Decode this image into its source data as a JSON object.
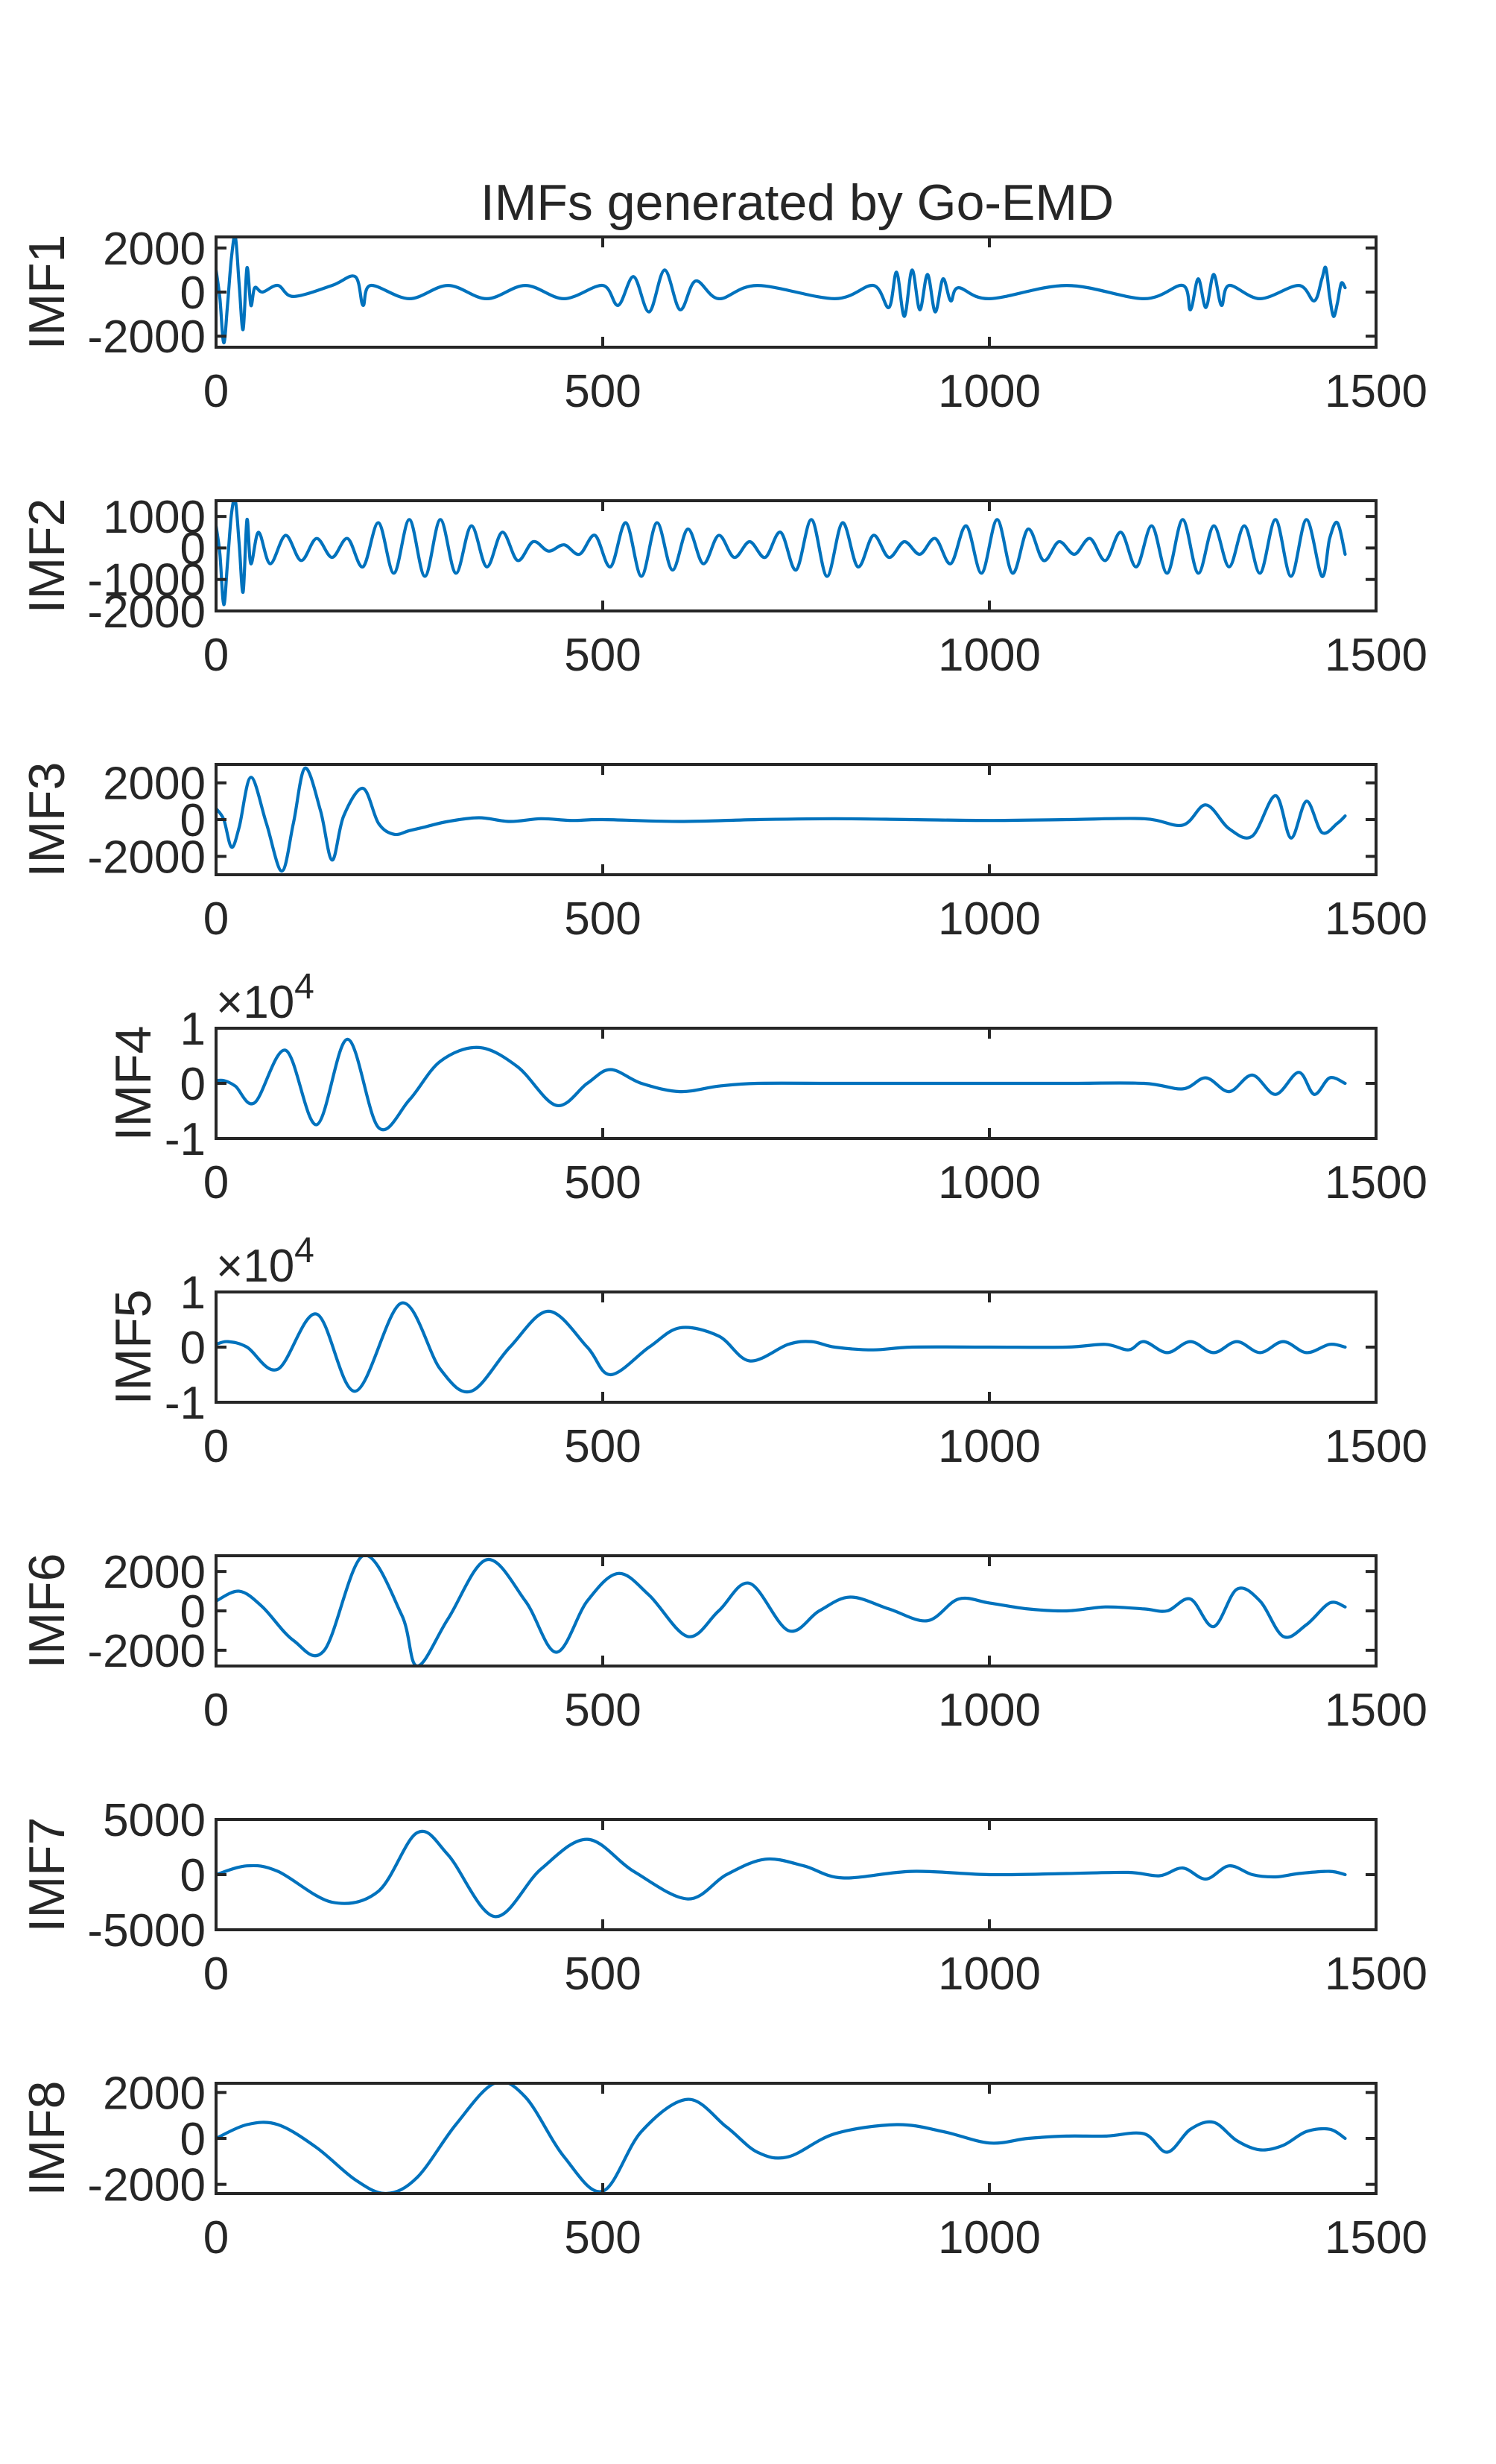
{
  "chart_data": [
    {
      "type": "line",
      "title": "IMFs generated by Go-EMD",
      "ylabel": "IMF1",
      "xlim": [
        0,
        1500
      ],
      "xticks": [
        "0",
        "500",
        "1000",
        "1500"
      ],
      "ylim": [
        -2500,
        2500
      ],
      "yticks": [
        {
          "value": 2000,
          "label": "2000"
        },
        {
          "value": 0,
          "label": "0"
        },
        {
          "value": -2000,
          "label": "-2000"
        }
      ],
      "exponent": "",
      "x": [
        0,
        5,
        10,
        15,
        20,
        25,
        30,
        35,
        40,
        45,
        50,
        60,
        80,
        100,
        150,
        180,
        190,
        200,
        250,
        300,
        350,
        400,
        450,
        500,
        520,
        540,
        560,
        580,
        600,
        620,
        650,
        700,
        800,
        850,
        870,
        880,
        890,
        900,
        910,
        920,
        930,
        940,
        950,
        960,
        1000,
        1100,
        1200,
        1250,
        1260,
        1270,
        1280,
        1290,
        1300,
        1310,
        1350,
        1400,
        1420,
        1430,
        1435,
        1440,
        1445,
        1450,
        1455,
        1460
      ],
      "values": [
        1000,
        -300,
        -2300,
        -500,
        1600,
        2500,
        300,
        -1700,
        1100,
        -600,
        200,
        0,
        300,
        -200,
        300,
        700,
        -600,
        300,
        -300,
        300,
        -300,
        300,
        -300,
        300,
        -600,
        700,
        -900,
        1000,
        -800,
        500,
        -300,
        300,
        -300,
        300,
        -700,
        900,
        -1100,
        1000,
        -800,
        800,
        -900,
        600,
        -400,
        200,
        -300,
        300,
        -300,
        300,
        -800,
        600,
        -700,
        800,
        -600,
        300,
        -300,
        300,
        -400,
        600,
        1100,
        -200,
        -1100,
        -500,
        400,
        200
      ]
    },
    {
      "type": "line",
      "ylabel": "IMF2",
      "xlim": [
        0,
        1500
      ],
      "xticks": [
        "0",
        "500",
        "1000",
        "1500"
      ],
      "ylim": [
        -2000,
        1500
      ],
      "yticks": [
        {
          "value": 1000,
          "label": "1000"
        },
        {
          "value": 0,
          "label": "0"
        },
        {
          "value": -1000,
          "label": "-1000"
        },
        {
          "value": -2000,
          "label": "-2000"
        }
      ],
      "exponent": "",
      "x": [
        0,
        5,
        10,
        15,
        20,
        25,
        30,
        35,
        40,
        45,
        55,
        70,
        90,
        110,
        130,
        150,
        170,
        190,
        210,
        230,
        250,
        270,
        290,
        310,
        330,
        350,
        370,
        390,
        410,
        430,
        450,
        470,
        490,
        510,
        530,
        550,
        570,
        590,
        610,
        630,
        650,
        670,
        690,
        710,
        730,
        750,
        770,
        790,
        810,
        830,
        850,
        870,
        890,
        910,
        930,
        950,
        970,
        990,
        1010,
        1030,
        1050,
        1070,
        1090,
        1110,
        1130,
        1150,
        1170,
        1190,
        1210,
        1230,
        1250,
        1270,
        1290,
        1310,
        1330,
        1350,
        1370,
        1390,
        1410,
        1430,
        1440,
        1450,
        1460
      ],
      "values": [
        700,
        -200,
        -1800,
        -400,
        1100,
        1500,
        100,
        -1400,
        900,
        -500,
        500,
        -500,
        400,
        -400,
        300,
        -300,
        300,
        -600,
        800,
        -800,
        900,
        -900,
        900,
        -800,
        700,
        -600,
        500,
        -400,
        200,
        -100,
        100,
        -200,
        400,
        -600,
        800,
        -900,
        800,
        -700,
        600,
        -500,
        400,
        -300,
        200,
        -300,
        500,
        -700,
        900,
        -900,
        800,
        -600,
        400,
        -300,
        200,
        -200,
        300,
        -500,
        700,
        -800,
        900,
        -800,
        600,
        -400,
        200,
        -200,
        300,
        -400,
        500,
        -600,
        700,
        -800,
        900,
        -800,
        700,
        -600,
        700,
        -800,
        900,
        -900,
        900,
        -900,
        300,
        800,
        -200
      ]
    },
    {
      "type": "line",
      "ylabel": "IMF3",
      "xlim": [
        0,
        1500
      ],
      "xticks": [
        "0",
        "500",
        "1000",
        "1500"
      ],
      "ylim": [
        -3000,
        3000
      ],
      "yticks": [
        {
          "value": 2000,
          "label": "2000"
        },
        {
          "value": 0,
          "label": "0"
        },
        {
          "value": -2000,
          "label": "-2000"
        }
      ],
      "exponent": "",
      "x": [
        0,
        10,
        20,
        30,
        45,
        65,
        85,
        100,
        115,
        135,
        150,
        165,
        190,
        210,
        230,
        250,
        270,
        300,
        340,
        380,
        420,
        460,
        500,
        600,
        700,
        800,
        900,
        1000,
        1100,
        1200,
        1250,
        1280,
        1310,
        1340,
        1370,
        1390,
        1410,
        1430,
        1450,
        1460
      ],
      "values": [
        600,
        0,
        -1500,
        -400,
        2300,
        -200,
        -2800,
        -200,
        2800,
        500,
        -2200,
        200,
        1700,
        -200,
        -800,
        -600,
        -400,
        -100,
        100,
        -100,
        50,
        -50,
        0,
        -100,
        0,
        50,
        0,
        -50,
        0,
        50,
        -300,
        800,
        -500,
        -900,
        1300,
        -1000,
        1000,
        -700,
        -200,
        200
      ]
    },
    {
      "type": "line",
      "ylabel": "IMF4",
      "xlim": [
        0,
        1500
      ],
      "xticks": [
        "0",
        "500",
        "1000",
        "1500"
      ],
      "ylim": [
        -1,
        1
      ],
      "yticks": [
        {
          "value": 1,
          "label": "1"
        },
        {
          "value": 0,
          "label": "0"
        },
        {
          "value": -1,
          "label": "-1"
        }
      ],
      "exponent": "×10^4",
      "x": [
        0,
        10,
        25,
        50,
        90,
        130,
        170,
        210,
        250,
        290,
        340,
        390,
        440,
        480,
        510,
        550,
        600,
        650,
        700,
        800,
        900,
        1000,
        1100,
        1200,
        1250,
        1280,
        1310,
        1340,
        1370,
        1400,
        1420,
        1440,
        1460
      ],
      "values": [
        0.05,
        0.05,
        -0.05,
        -0.35,
        0.6,
        -0.75,
        0.8,
        -0.8,
        -0.3,
        0.4,
        0.65,
        0.3,
        -0.4,
        0.0,
        0.25,
        0.0,
        -0.15,
        -0.05,
        0.0,
        0.0,
        0.0,
        0.0,
        0.0,
        0.0,
        -0.1,
        0.1,
        -0.15,
        0.15,
        -0.2,
        0.2,
        -0.2,
        0.1,
        0.0
      ]
    },
    {
      "type": "line",
      "ylabel": "IMF5",
      "xlim": [
        0,
        1500
      ],
      "xticks": [
        "0",
        "500",
        "1000",
        "1500"
      ],
      "ylim": [
        -1,
        1
      ],
      "yticks": [
        {
          "value": 1,
          "label": "1"
        },
        {
          "value": 0,
          "label": "0"
        },
        {
          "value": -1,
          "label": "-1"
        }
      ],
      "exponent": "×10^4",
      "x": [
        0,
        15,
        40,
        80,
        130,
        180,
        240,
        290,
        330,
        380,
        430,
        480,
        510,
        560,
        600,
        650,
        690,
        740,
        770,
        800,
        850,
        900,
        1000,
        1100,
        1150,
        1180,
        1200,
        1230,
        1260,
        1290,
        1320,
        1350,
        1380,
        1410,
        1440,
        1460
      ],
      "values": [
        0.05,
        0.1,
        0.0,
        -0.4,
        0.6,
        -0.8,
        0.8,
        -0.4,
        -0.8,
        0.0,
        0.65,
        0.0,
        -0.5,
        0.0,
        0.35,
        0.2,
        -0.25,
        0.05,
        0.1,
        0.0,
        -0.05,
        0.0,
        0.0,
        0.0,
        0.05,
        -0.05,
        0.1,
        -0.1,
        0.1,
        -0.1,
        0.1,
        -0.1,
        0.1,
        -0.1,
        0.05,
        0.0
      ]
    },
    {
      "type": "line",
      "ylabel": "IMF6",
      "xlim": [
        0,
        1500
      ],
      "xticks": [
        "0",
        "500",
        "1000",
        "1500"
      ],
      "ylim": [
        -2800,
        2800
      ],
      "yticks": [
        {
          "value": 2000,
          "label": "2000"
        },
        {
          "value": 0,
          "label": "0"
        },
        {
          "value": -2000,
          "label": "-2000"
        }
      ],
      "exponent": "",
      "x": [
        0,
        30,
        60,
        100,
        140,
        190,
        240,
        260,
        300,
        350,
        400,
        440,
        480,
        520,
        560,
        610,
        650,
        690,
        740,
        780,
        820,
        870,
        920,
        960,
        1000,
        1050,
        1100,
        1150,
        1200,
        1230,
        1260,
        1290,
        1320,
        1350,
        1380,
        1410,
        1440,
        1460
      ],
      "values": [
        500,
        1000,
        200,
        -1500,
        -2000,
        2800,
        -200,
        -2800,
        -400,
        2600,
        500,
        -2100,
        500,
        1900,
        800,
        -1300,
        0,
        1400,
        -1000,
        0,
        700,
        100,
        -500,
        600,
        400,
        100,
        0,
        200,
        100,
        0,
        600,
        -800,
        1100,
        500,
        -1300,
        -700,
        400,
        200
      ]
    },
    {
      "type": "line",
      "ylabel": "IMF7",
      "xlim": [
        0,
        1500
      ],
      "xticks": [
        "0",
        "500",
        "1000",
        "1500"
      ],
      "ylim": [
        -5000,
        5000
      ],
      "yticks": [
        {
          "value": 5000,
          "label": "5000"
        },
        {
          "value": 0,
          "label": "0"
        },
        {
          "value": -5000,
          "label": "-5000"
        }
      ],
      "exponent": "",
      "x": [
        0,
        40,
        80,
        150,
        210,
        260,
        300,
        360,
        420,
        480,
        540,
        610,
        660,
        710,
        760,
        810,
        900,
        1000,
        1100,
        1180,
        1220,
        1250,
        1280,
        1310,
        1340,
        1370,
        1400,
        1440,
        1460
      ],
      "values": [
        0,
        800,
        300,
        -2500,
        -1500,
        3800,
        1800,
        -3800,
        500,
        3200,
        300,
        -2200,
        0,
        1400,
        800,
        -300,
        300,
        0,
        100,
        200,
        -100,
        600,
        -400,
        800,
        0,
        -200,
        100,
        300,
        0
      ]
    },
    {
      "type": "line",
      "ylabel": "IMF8",
      "xlim": [
        0,
        1500
      ],
      "xticks": [
        "0",
        "500",
        "1000",
        "1500"
      ],
      "ylim": [
        -2400,
        2400
      ],
      "yticks": [
        {
          "value": 2000,
          "label": "2000"
        },
        {
          "value": 0,
          "label": "0"
        },
        {
          "value": -2000,
          "label": "-2000"
        }
      ],
      "exponent": "",
      "x": [
        0,
        40,
        80,
        130,
        180,
        220,
        260,
        310,
        360,
        400,
        450,
        500,
        550,
        610,
        660,
        700,
        740,
        800,
        880,
        940,
        1000,
        1050,
        1100,
        1150,
        1200,
        1230,
        1260,
        1290,
        1320,
        1350,
        1380,
        1410,
        1440,
        1460
      ],
      "values": [
        0,
        600,
        600,
        -400,
        -1800,
        -2400,
        -1700,
        600,
        2400,
        1800,
        -800,
        -2300,
        300,
        1700,
        500,
        -600,
        -800,
        200,
        600,
        300,
        -200,
        0,
        100,
        100,
        200,
        -600,
        400,
        700,
        -100,
        -500,
        -300,
        300,
        400,
        0
      ]
    }
  ],
  "colors": {
    "series": "#0072bd",
    "axes": "#262626",
    "background": "#ffffff"
  }
}
